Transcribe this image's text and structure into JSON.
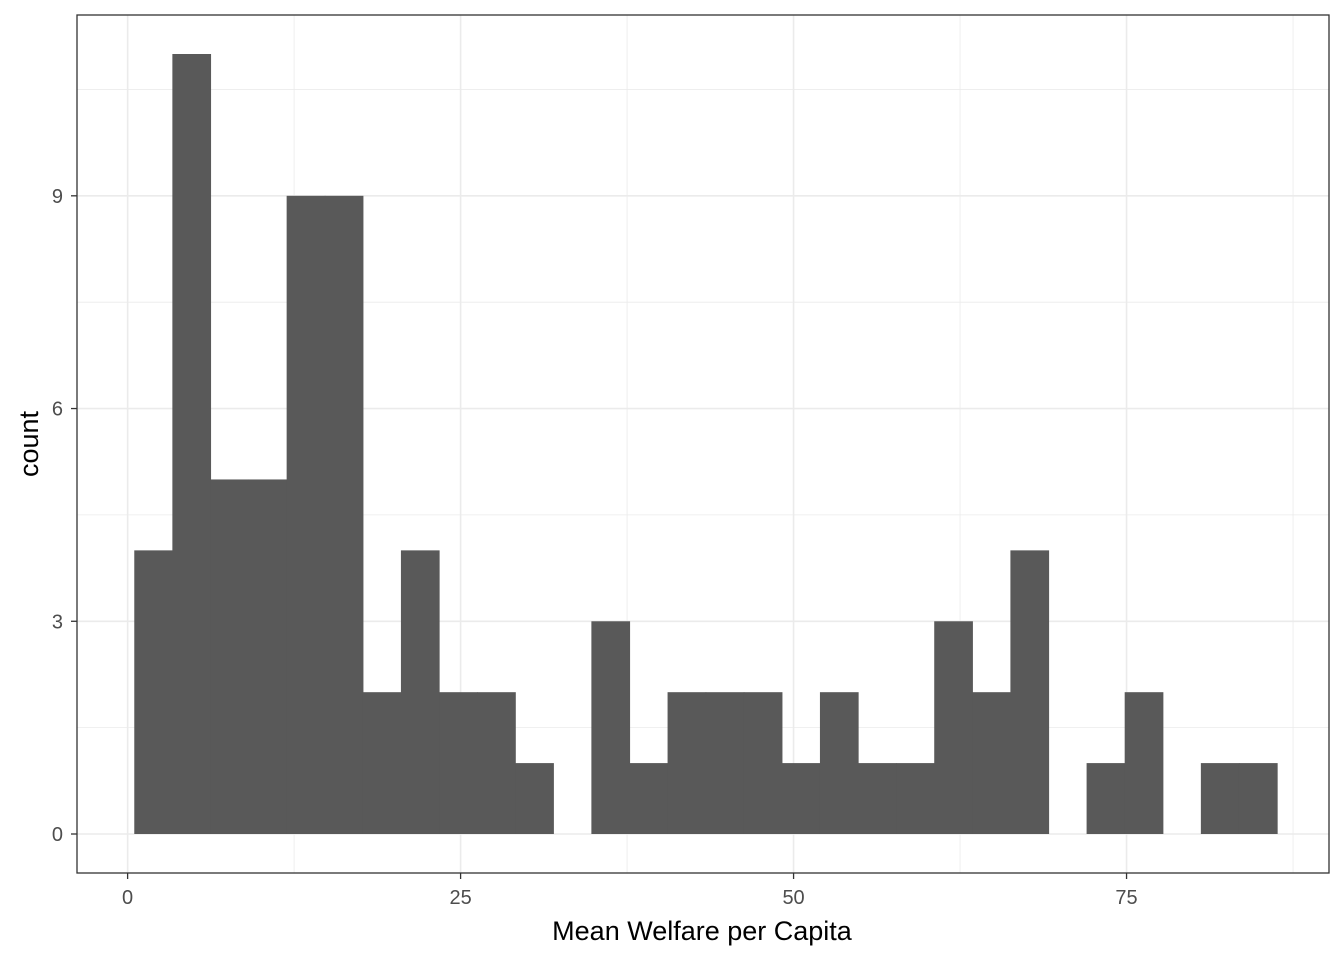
{
  "chart_data": {
    "type": "bar",
    "subtype": "histogram",
    "title": "",
    "xlabel": "Mean Welfare per Capita",
    "ylabel": "count",
    "xlim": [
      -3.8,
      90.2
    ],
    "ylim": [
      -0.55,
      11.55
    ],
    "grid": true,
    "legend": "none",
    "bin_width": 2.86,
    "x_ticks": [
      {
        "value": 0,
        "label": "0"
      },
      {
        "value": 25,
        "label": "25"
      },
      {
        "value": 50,
        "label": "50"
      },
      {
        "value": 75,
        "label": "75"
      }
    ],
    "y_ticks": [
      {
        "value": 0,
        "label": "0"
      },
      {
        "value": 3,
        "label": "3"
      },
      {
        "value": 6,
        "label": "6"
      },
      {
        "value": 9,
        "label": "9"
      }
    ],
    "x_minor": [
      12.5,
      37.5,
      62.5,
      87.5
    ],
    "y_minor": [
      1.5,
      4.5,
      7.5,
      10.5
    ],
    "bins": [
      {
        "x0": 0.5,
        "x1": 3.36,
        "count": 4
      },
      {
        "x0": 3.36,
        "x1": 6.22,
        "count": 11
      },
      {
        "x0": 6.22,
        "x1": 9.08,
        "count": 5
      },
      {
        "x0": 9.08,
        "x1": 11.94,
        "count": 5
      },
      {
        "x0": 11.94,
        "x1": 14.8,
        "count": 9
      },
      {
        "x0": 14.8,
        "x1": 17.66,
        "count": 9
      },
      {
        "x0": 17.66,
        "x1": 20.52,
        "count": 2
      },
      {
        "x0": 20.52,
        "x1": 23.38,
        "count": 4
      },
      {
        "x0": 23.38,
        "x1": 26.24,
        "count": 2
      },
      {
        "x0": 26.24,
        "x1": 29.1,
        "count": 2
      },
      {
        "x0": 29.1,
        "x1": 31.96,
        "count": 1
      },
      {
        "x0": 31.96,
        "x1": 34.82,
        "count": 0
      },
      {
        "x0": 34.82,
        "x1": 37.68,
        "count": 3
      },
      {
        "x0": 37.68,
        "x1": 40.54,
        "count": 1
      },
      {
        "x0": 40.54,
        "x1": 43.4,
        "count": 2
      },
      {
        "x0": 43.4,
        "x1": 46.26,
        "count": 2
      },
      {
        "x0": 46.26,
        "x1": 49.12,
        "count": 2
      },
      {
        "x0": 49.12,
        "x1": 51.98,
        "count": 1
      },
      {
        "x0": 51.98,
        "x1": 54.84,
        "count": 2
      },
      {
        "x0": 54.84,
        "x1": 57.7,
        "count": 1
      },
      {
        "x0": 57.7,
        "x1": 60.56,
        "count": 1
      },
      {
        "x0": 60.56,
        "x1": 63.42,
        "count": 3
      },
      {
        "x0": 63.42,
        "x1": 66.28,
        "count": 2
      },
      {
        "x0": 66.28,
        "x1": 69.14,
        "count": 4
      },
      {
        "x0": 69.14,
        "x1": 72.0,
        "count": 0
      },
      {
        "x0": 72.0,
        "x1": 74.86,
        "count": 1
      },
      {
        "x0": 74.86,
        "x1": 77.72,
        "count": 2
      },
      {
        "x0": 77.72,
        "x1": 80.58,
        "count": 0
      },
      {
        "x0": 80.58,
        "x1": 83.44,
        "count": 1
      },
      {
        "x0": 83.44,
        "x1": 86.3,
        "count": 1
      }
    ],
    "bar_color": "#595959",
    "grid_color": "#ebebeb",
    "panel_border_color": "#333333"
  }
}
